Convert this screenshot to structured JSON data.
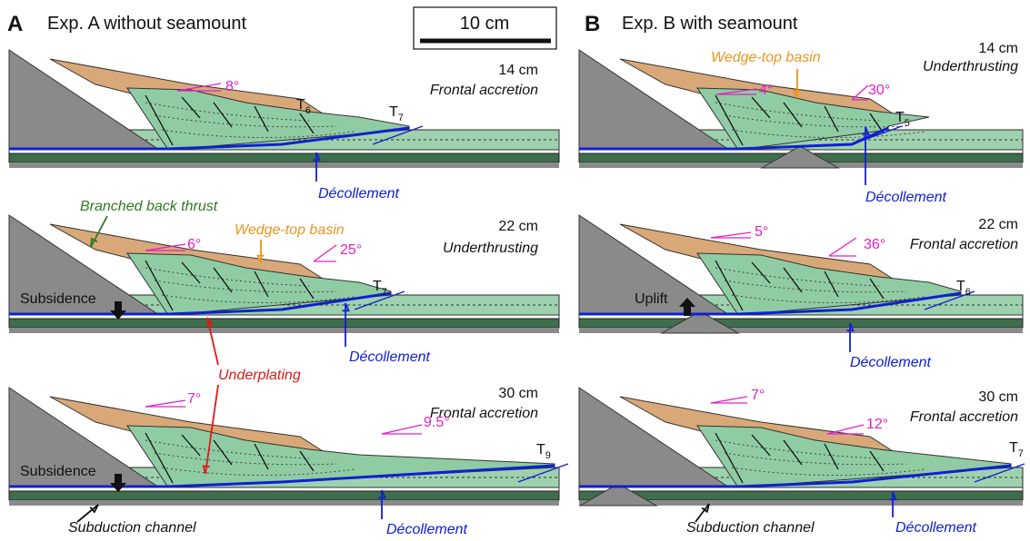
{
  "scale_bar": "10 cm",
  "panels": [
    {
      "letter": "A",
      "title": "Exp. A without seamount",
      "rows": [
        {
          "length": "14 cm",
          "mode": "Frontal accretion",
          "angles": [
            "8°"
          ],
          "thrusts": [
            {
              "base": "T",
              "sub": "6"
            },
            {
              "base": "T",
              "sub": "7"
            }
          ],
          "decollement": "Décollement"
        },
        {
          "length": "22 cm",
          "mode": "Underthrusting",
          "angles": [
            "6°",
            "25°"
          ],
          "thrusts": [
            {
              "base": "T",
              "sub": "7"
            }
          ],
          "decollement": "Décollement",
          "annotations": [
            "Branched back thrust",
            "Wedge-top basin",
            "Subsidence"
          ]
        },
        {
          "length": "30 cm",
          "mode": "Frontal accretion",
          "angles": [
            "7°",
            "9.5°"
          ],
          "thrusts": [
            {
              "base": "T",
              "sub": "9"
            }
          ],
          "decollement": "Décollement",
          "annotations": [
            "Subsidence",
            "Subduction channel"
          ]
        }
      ],
      "shared_label": "Underplating"
    },
    {
      "letter": "B",
      "title": "Exp. B with seamount",
      "rows": [
        {
          "length": "14 cm",
          "mode": "Underthrusting",
          "angles": [
            "4°",
            "30°"
          ],
          "thrusts": [
            {
              "base": "T",
              "sub": "5"
            }
          ],
          "decollement": "Décollement",
          "annotations": [
            "Wedge-top basin"
          ]
        },
        {
          "length": "22 cm",
          "mode": "Frontal accretion",
          "angles": [
            "5°",
            "36°"
          ],
          "thrusts": [
            {
              "base": "T",
              "sub": "6"
            }
          ],
          "decollement": "Décollement",
          "annotations": [
            "Uplift"
          ]
        },
        {
          "length": "30 cm",
          "mode": "Frontal accretion",
          "angles": [
            "7°",
            "12°"
          ],
          "thrusts": [
            {
              "base": "T",
              "sub": "7"
            }
          ],
          "decollement": "Décollement",
          "annotations": [
            "Subduction channel"
          ]
        }
      ]
    }
  ]
}
